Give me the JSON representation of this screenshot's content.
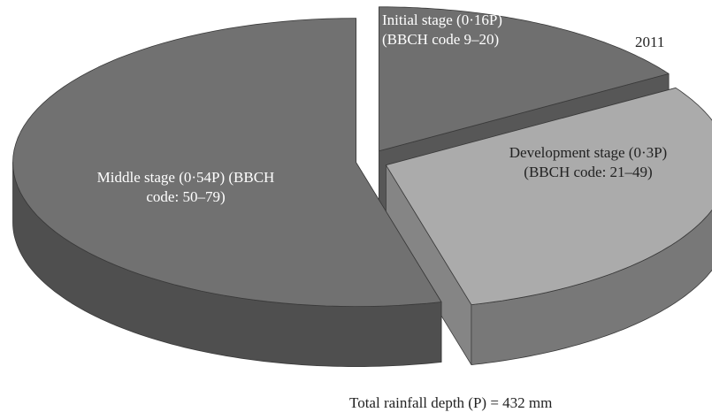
{
  "chart_data": {
    "type": "pie",
    "title": "2011",
    "note": "Total rainfall depth (P) = 432 mm",
    "categories": [
      "Initial stage (0·16P) (BBCH code 9–20)",
      "Development stage (0·3P) (BBCH code: 21–49)",
      "Middle stage (0·54P) (BBCH code: 50–79)"
    ],
    "values": [
      0.16,
      0.3,
      0.54
    ],
    "colors": [
      "#6f6f6f",
      "#ababab",
      "#717171"
    ]
  }
}
